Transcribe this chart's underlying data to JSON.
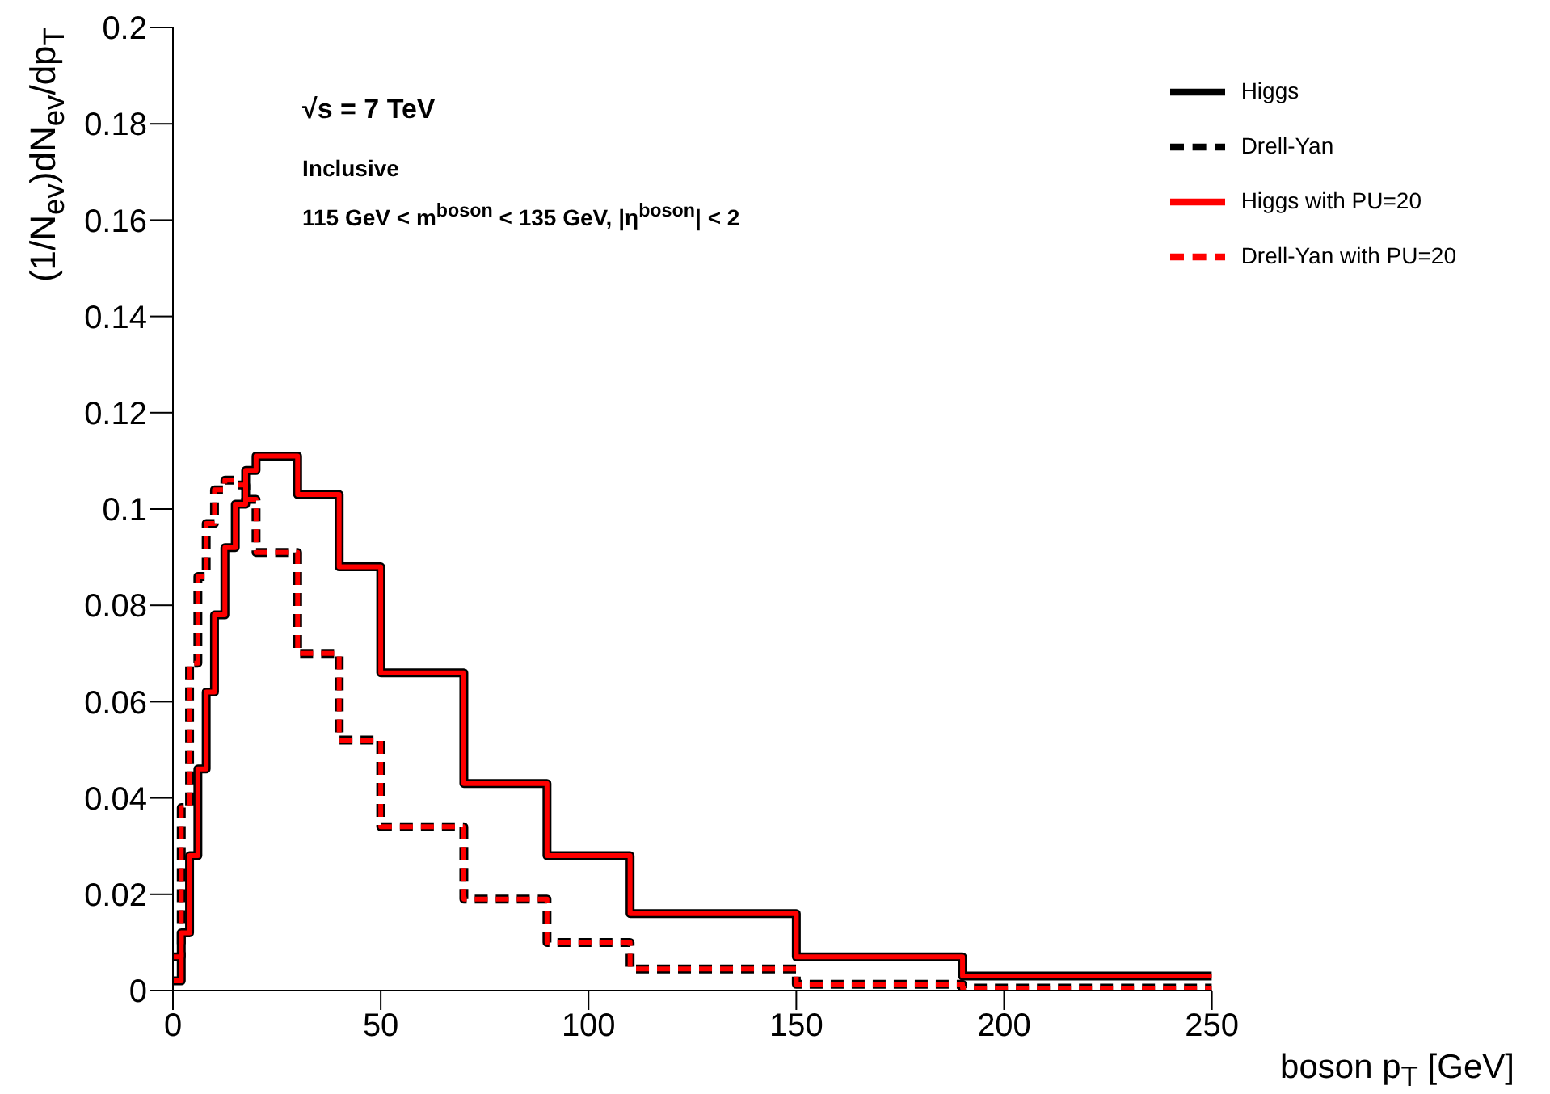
{
  "chart_data": {
    "type": "step",
    "xlabel": "boson p$_{T}$ [GeV]",
    "ylabel": "(1/N$_{ev}$)dN$_{ev}$/dp$_{T}$",
    "annotations": [
      "√s = 7 TeV",
      "Inclusive",
      "115 GeV < m$^{boson}$ < 135 GeV, |η$^{boson}$| < 2"
    ],
    "x": [
      0,
      2,
      4,
      6,
      8,
      10,
      12.5,
      15,
      17.5,
      20,
      30,
      40,
      50,
      70,
      90,
      110,
      150,
      190,
      250
    ],
    "series": [
      {
        "name": "Higgs",
        "color": "#000000",
        "line_style": "solid",
        "values": [
          0.002,
          0.012,
          0.028,
          0.046,
          0.062,
          0.078,
          0.092,
          0.101,
          0.108,
          0.111,
          0.103,
          0.088,
          0.066,
          0.043,
          0.028,
          0.016,
          0.007,
          0.003,
          0.003
        ]
      },
      {
        "name": "Drell-Yan",
        "color": "#000000",
        "line_style": "dashed",
        "values": [
          0.007,
          0.038,
          0.068,
          0.086,
          0.097,
          0.104,
          0.106,
          0.105,
          0.102,
          0.091,
          0.07,
          0.052,
          0.034,
          0.019,
          0.01,
          0.0045,
          0.0013,
          0.0005,
          0.0005
        ]
      },
      {
        "name": "Higgs with PU=20",
        "color": "#ff0000",
        "line_style": "solid",
        "values": [
          0.002,
          0.012,
          0.028,
          0.046,
          0.062,
          0.078,
          0.092,
          0.101,
          0.108,
          0.111,
          0.103,
          0.088,
          0.066,
          0.043,
          0.028,
          0.016,
          0.007,
          0.003,
          0.003
        ]
      },
      {
        "name": "Drell-Yan with PU=20",
        "color": "#ff0000",
        "line_style": "dashed",
        "values": [
          0.007,
          0.038,
          0.068,
          0.086,
          0.097,
          0.104,
          0.106,
          0.105,
          0.102,
          0.091,
          0.07,
          0.052,
          0.034,
          0.019,
          0.01,
          0.0045,
          0.0013,
          0.0005,
          0.0005
        ]
      }
    ],
    "xlim": [
      0,
      250
    ],
    "xticks": [
      0,
      50,
      100,
      150,
      200,
      250
    ],
    "ylim": [
      0,
      0.2
    ],
    "yticks": [
      0,
      0.02,
      0.04,
      0.06,
      0.08,
      0.1,
      0.12,
      0.14,
      0.16,
      0.18,
      0.2
    ],
    "grid": false,
    "legend": "top right"
  }
}
